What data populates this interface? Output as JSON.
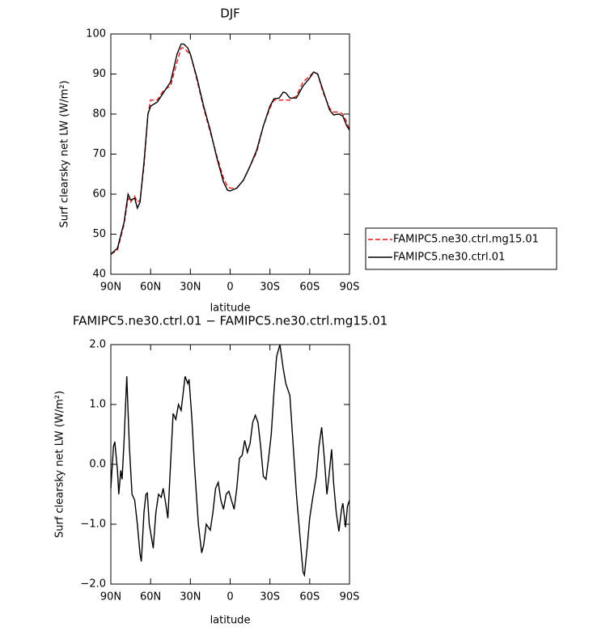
{
  "chart_data": [
    {
      "type": "line",
      "title": "DJF",
      "xlabel": "latitude",
      "ylabel": "Surf clearsky net LW (W/m²)",
      "xlim": [
        90,
        -90
      ],
      "ylim": [
        40,
        100
      ],
      "xticks": [
        {
          "value": 90,
          "label": "90N"
        },
        {
          "value": 60,
          "label": "60N"
        },
        {
          "value": 30,
          "label": "30N"
        },
        0,
        {
          "value": -30,
          "label": "30S"
        },
        {
          "value": -60,
          "label": "60S"
        },
        {
          "value": -90,
          "label": "90S"
        }
      ],
      "yticks": [
        40,
        50,
        60,
        70,
        80,
        90,
        100
      ],
      "legend": "right",
      "x": [
        90,
        85,
        80,
        77,
        75,
        72,
        70,
        68,
        65,
        62,
        60,
        55,
        50,
        45,
        40,
        37,
        35,
        32,
        30,
        25,
        20,
        15,
        10,
        5,
        2,
        0,
        -5,
        -10,
        -15,
        -20,
        -25,
        -30,
        -33,
        -37,
        -40,
        -42,
        -45,
        -50,
        -55,
        -60,
        -63,
        -66,
        -70,
        -75,
        -78,
        -82,
        -85,
        -88,
        -90
      ],
      "series": [
        {
          "name": "FAMIPC5.ne30.ctrl.mg15.01",
          "color": "#e41a1c",
          "linestyle": "dashed",
          "values": [
            45,
            46,
            52.5,
            59,
            58,
            59.5,
            58,
            58.5,
            67,
            80,
            83.5,
            83.5,
            86,
            87,
            93,
            96.5,
            96.5,
            95.5,
            95,
            88.5,
            81.5,
            75.5,
            69.5,
            64,
            62,
            61.5,
            61.5,
            63.5,
            67,
            70.5,
            77,
            81.5,
            83.5,
            83.5,
            83.5,
            83.5,
            83.5,
            84.5,
            88,
            89.5,
            90.5,
            90,
            85.5,
            81.5,
            80.5,
            80.5,
            80,
            78,
            76
          ]
        },
        {
          "name": "FAMIPC5.ne30.ctrl.01",
          "color": "#000000",
          "linestyle": "solid",
          "values": [
            45,
            46.5,
            53,
            60,
            58.5,
            59,
            56.5,
            58,
            68,
            80,
            82,
            83,
            85.5,
            88,
            95,
            97.5,
            97.5,
            96.5,
            95,
            89,
            82,
            76,
            69,
            63,
            61,
            60.8,
            61.5,
            63.5,
            67,
            71,
            77,
            82,
            83.8,
            84,
            85.5,
            85.3,
            84,
            84,
            87,
            89,
            90.5,
            90,
            86,
            81,
            79.8,
            80,
            79.5,
            77,
            76
          ]
        }
      ]
    },
    {
      "type": "line",
      "title": "FAMIPC5.ne30.ctrl.01 − FAMIPC5.ne30.ctrl.mg15.01",
      "xlabel": "latitude",
      "ylabel": "Surf clearsky net LW (W/m²)",
      "xlim": [
        90,
        -90
      ],
      "ylim": [
        -2,
        2
      ],
      "xticks": [
        {
          "value": 90,
          "label": "90N"
        },
        {
          "value": 60,
          "label": "60N"
        },
        {
          "value": 30,
          "label": "30N"
        },
        0,
        {
          "value": -30,
          "label": "30S"
        },
        {
          "value": -60,
          "label": "60S"
        },
        {
          "value": -90,
          "label": "90S"
        }
      ],
      "yticks": [
        {
          "value": -2,
          "label": "−2.0"
        },
        {
          "value": -1,
          "label": "−1.0"
        },
        {
          "value": 0,
          "label": "0.0"
        },
        {
          "value": 1,
          "label": "1.0"
        },
        {
          "value": 2,
          "label": "2.0"
        }
      ],
      "x": [
        90,
        88,
        87,
        85,
        84,
        82.5,
        81.5,
        80,
        78,
        76,
        74,
        72,
        70,
        68,
        67,
        65,
        63.5,
        62.5,
        61,
        58,
        56,
        54,
        52,
        50.5,
        49,
        47,
        45,
        43,
        41,
        39,
        37,
        34,
        32,
        31,
        29,
        27,
        24,
        21.5,
        20,
        18,
        15,
        13,
        11,
        9,
        7,
        5,
        3,
        1,
        -1,
        -3,
        -5,
        -7,
        -9,
        -11,
        -13,
        -15,
        -17,
        -19,
        -21,
        -23,
        -25,
        -27,
        -29,
        -31,
        -33,
        -35,
        -37.5,
        -40,
        -42,
        -45,
        -47,
        -50,
        -53,
        -55,
        -56,
        -58,
        -60,
        -62,
        -65,
        -67,
        -69,
        -71,
        -73,
        -74.5,
        -76.5,
        -78,
        -80,
        -82,
        -84,
        -85,
        -87,
        -88.5,
        -90
      ],
      "series": [
        {
          "color": "#000000",
          "linestyle": "solid",
          "values": [
            -0.4,
            0.3,
            0.38,
            -0.1,
            -0.5,
            -0.1,
            -0.25,
            0.4,
            1.47,
            0.3,
            -0.5,
            -0.6,
            -1.0,
            -1.5,
            -1.62,
            -0.8,
            -0.5,
            -0.48,
            -1.0,
            -1.4,
            -0.8,
            -0.5,
            -0.55,
            -0.4,
            -0.6,
            -0.9,
            0.0,
            0.85,
            0.75,
            1.0,
            0.9,
            1.47,
            1.35,
            1.42,
            0.8,
            0.0,
            -1.0,
            -1.48,
            -1.35,
            -1.0,
            -1.1,
            -0.8,
            -0.4,
            -0.3,
            -0.6,
            -0.75,
            -0.5,
            -0.45,
            -0.6,
            -0.75,
            -0.4,
            0.1,
            0.15,
            0.4,
            0.2,
            0.35,
            0.7,
            0.82,
            0.7,
            0.3,
            -0.2,
            -0.25,
            0.1,
            0.5,
            1.2,
            1.8,
            2.0,
            1.6,
            1.35,
            1.15,
            0.5,
            -0.5,
            -1.3,
            -1.8,
            -1.85,
            -1.4,
            -0.9,
            -0.6,
            -0.2,
            0.3,
            0.62,
            0.1,
            -0.5,
            -0.2,
            0.25,
            -0.3,
            -0.8,
            -1.12,
            -0.75,
            -0.65,
            -1.05,
            -0.7,
            -0.6
          ]
        }
      ]
    }
  ]
}
